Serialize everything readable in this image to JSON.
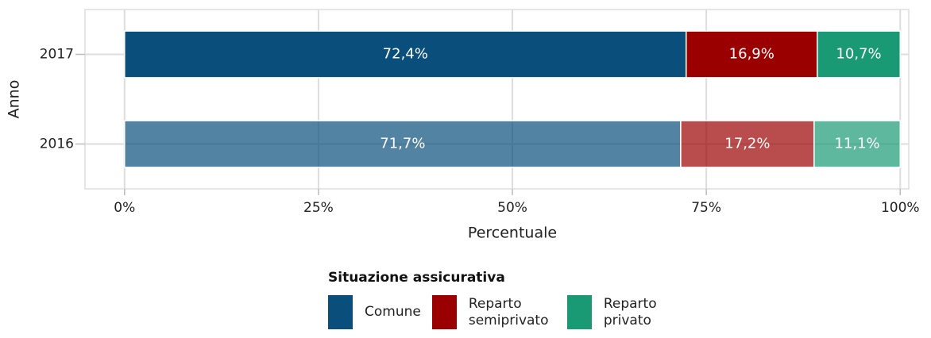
{
  "chart_data": {
    "type": "stacked_barh",
    "x_label": "Percentuale",
    "y_label": "Anno",
    "legend_title": "Situazione assicurativa",
    "categories": [
      "2016",
      "2017"
    ],
    "category_opacity": [
      0.7,
      1
    ],
    "series": [
      {
        "name": "Comune",
        "color": "#0a4f7c",
        "values": [
          71.7,
          72.4
        ],
        "value_labels": [
          "71,7%",
          "72,4%"
        ]
      },
      {
        "name": "Reparto semiprivato",
        "color": "#9b0000",
        "values": [
          17.2,
          16.9
        ],
        "value_labels": [
          "17,2%",
          "16,9%"
        ]
      },
      {
        "name": "Reparto privato",
        "color": "#1a9a74",
        "values": [
          11.1,
          10.7
        ],
        "value_labels": [
          "11,1%",
          "10,7%"
        ]
      }
    ],
    "xlim": [
      -5.1,
      101.1
    ],
    "xticks": [
      {
        "value": 0,
        "label": "0%"
      },
      {
        "value": 25,
        "label": "25%"
      },
      {
        "value": 50,
        "label": "50%"
      },
      {
        "value": 75,
        "label": "75%"
      },
      {
        "value": 100,
        "label": "100%"
      }
    ],
    "grid": true,
    "legend": "bottom"
  }
}
